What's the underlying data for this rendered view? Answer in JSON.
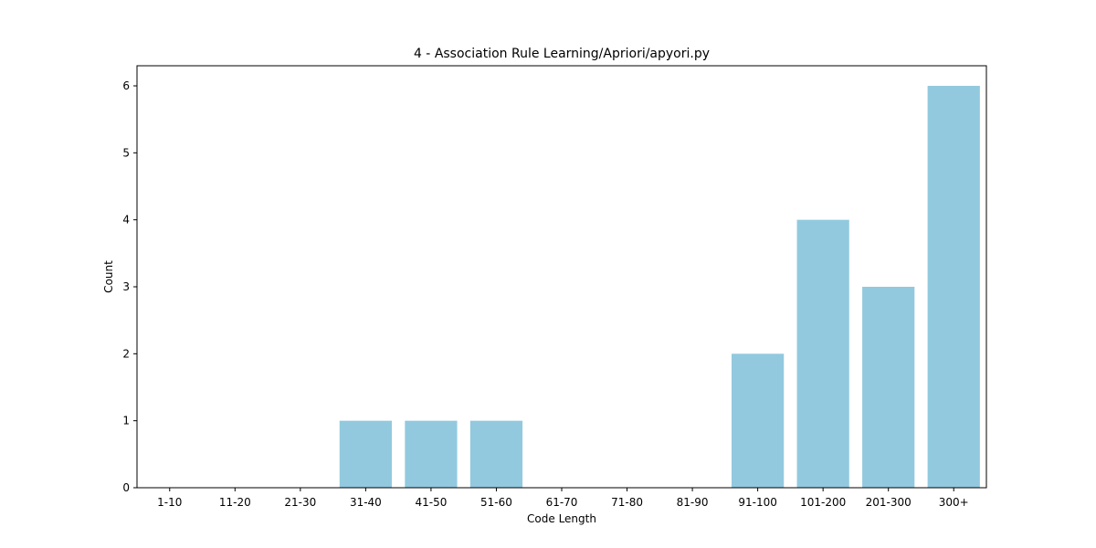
{
  "chart_data": {
    "type": "bar",
    "title": "4 - Association Rule Learning/Apriori/apyori.py",
    "xlabel": "Code Length",
    "ylabel": "Count",
    "categories": [
      "1-10",
      "11-20",
      "21-30",
      "31-40",
      "41-50",
      "51-60",
      "61-70",
      "71-80",
      "81-90",
      "91-100",
      "101-200",
      "201-300",
      "300+"
    ],
    "values": [
      0,
      0,
      0,
      1,
      1,
      1,
      0,
      0,
      0,
      2,
      4,
      3,
      6
    ],
    "ylim": [
      0,
      6.3
    ],
    "yticks": [
      0,
      1,
      2,
      3,
      4,
      5,
      6
    ],
    "bar_color": "#92c9de",
    "grid": false,
    "legend": "none"
  }
}
